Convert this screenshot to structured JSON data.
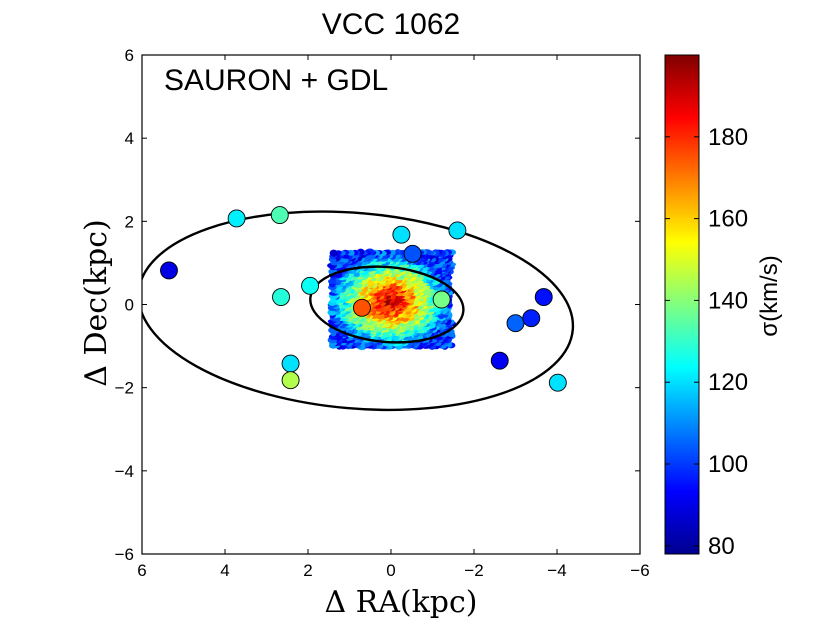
{
  "chart_data": {
    "type": "scatter",
    "title": "VCC 1062",
    "annotation": "SAURON + GDL",
    "xlabel": "Δ RA(kpc)",
    "ylabel": "Δ Dec(kpc)",
    "xlim": [
      6,
      -6
    ],
    "ylim": [
      -6,
      6
    ],
    "xticks": [
      6,
      4,
      2,
      0,
      -2,
      -4,
      -6
    ],
    "yticks": [
      -6,
      -4,
      -2,
      0,
      2,
      4,
      6
    ],
    "colorbar": {
      "label": "σ(km/s)",
      "range": [
        78,
        200
      ],
      "ticks": [
        80,
        100,
        120,
        140,
        160,
        180
      ],
      "colormap": "jet"
    },
    "ellipses": [
      {
        "center": [
          0.85,
          -0.15
        ],
        "semi_major": 5.25,
        "semi_minor": 2.35,
        "pa_deg": 5
      },
      {
        "center": [
          0.1,
          0.0
        ],
        "semi_major": 1.85,
        "semi_minor": 0.9,
        "pa_deg": 5
      }
    ],
    "points": [
      {
        "x": 5.35,
        "y": 0.82,
        "sigma": 90
      },
      {
        "x": 3.72,
        "y": 2.07,
        "sigma": 122
      },
      {
        "x": 2.68,
        "y": 2.15,
        "sigma": 133
      },
      {
        "x": 2.65,
        "y": 0.18,
        "sigma": 128
      },
      {
        "x": 1.95,
        "y": 0.45,
        "sigma": 125
      },
      {
        "x": 2.42,
        "y": -1.42,
        "sigma": 120
      },
      {
        "x": 2.42,
        "y": -1.82,
        "sigma": 145
      },
      {
        "x": 0.7,
        "y": -0.08,
        "sigma": 175
      },
      {
        "x": -0.25,
        "y": 1.68,
        "sigma": 120
      },
      {
        "x": -0.52,
        "y": 1.22,
        "sigma": 103
      },
      {
        "x": -1.6,
        "y": 1.78,
        "sigma": 120
      },
      {
        "x": -1.22,
        "y": 0.12,
        "sigma": 138
      },
      {
        "x": -2.62,
        "y": -1.35,
        "sigma": 92
      },
      {
        "x": -3.0,
        "y": -0.45,
        "sigma": 105
      },
      {
        "x": -3.38,
        "y": -0.33,
        "sigma": 97
      },
      {
        "x": -3.68,
        "y": 0.18,
        "sigma": 95
      },
      {
        "x": -4.02,
        "y": -1.88,
        "sigma": 120
      }
    ],
    "ifu_map": {
      "x_range": [
        1.4,
        -1.45
      ],
      "y_range": [
        -1.0,
        1.25
      ],
      "center_sigma": 195,
      "edge_sigma": 100
    }
  }
}
